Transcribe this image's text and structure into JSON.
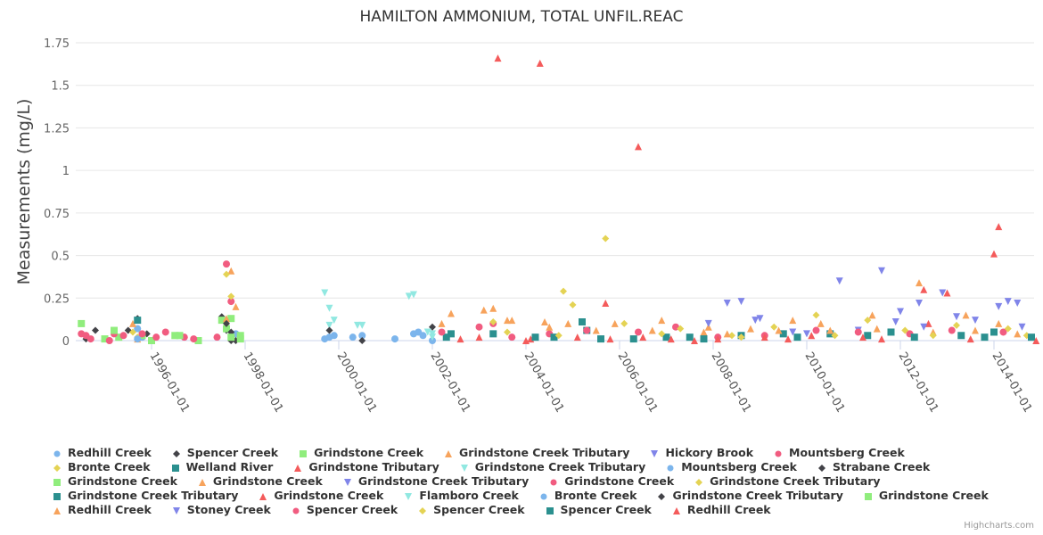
{
  "chart_data": {
    "type": "scatter",
    "title": "HAMILTON AMMONIUM, TOTAL UNFIL.REAC",
    "ylabel": "Measurements (mg/L)",
    "xlabel": "",
    "ylim": [
      0,
      1.75
    ],
    "xlim": [
      1994.4,
      2015.0
    ],
    "yticks": [
      {
        "value": 0,
        "label": "0"
      },
      {
        "value": 0.25,
        "label": "0.25"
      },
      {
        "value": 0.5,
        "label": "0.5"
      },
      {
        "value": 0.75,
        "label": "0.75"
      },
      {
        "value": 1,
        "label": "1"
      },
      {
        "value": 1.25,
        "label": "1.25"
      },
      {
        "value": 1.5,
        "label": "1.5"
      },
      {
        "value": 1.75,
        "label": "1.75"
      }
    ],
    "xticks": [
      {
        "value": 1996,
        "label": "1996-01-01"
      },
      {
        "value": 1998,
        "label": "1998-01-01"
      },
      {
        "value": 2000,
        "label": "2000-01-01"
      },
      {
        "value": 2002,
        "label": "2002-01-01"
      },
      {
        "value": 2004,
        "label": "2004-01-01"
      },
      {
        "value": 2006,
        "label": "2006-01-01"
      },
      {
        "value": 2008,
        "label": "2008-01-01"
      },
      {
        "value": 2010,
        "label": "2010-01-01"
      },
      {
        "value": 2012,
        "label": "2012-01-01"
      },
      {
        "value": 2014,
        "label": "2014-01-01"
      }
    ],
    "grid": true,
    "legend_position": "bottom",
    "series": [
      {
        "name": "Redhill Creek",
        "color": "#7cb5ec",
        "symbol": "circle",
        "points": [
          [
            1995.7,
            0.07
          ],
          [
            1995.8,
            0.02
          ],
          [
            1997.8,
            0.04
          ]
        ]
      },
      {
        "name": "Spencer Creek",
        "color": "#434348",
        "symbol": "diamond",
        "points": [
          [
            1994.6,
            0.01
          ],
          [
            1994.8,
            0.06
          ],
          [
            1995.5,
            0.06
          ],
          [
            1995.7,
            0.13
          ],
          [
            1995.9,
            0.04
          ],
          [
            1997.5,
            0.14
          ],
          [
            1997.6,
            0.06
          ],
          [
            1997.7,
            0.0
          ],
          [
            1997.8,
            0.0
          ]
        ]
      },
      {
        "name": "Grindstone Creek",
        "color": "#90ed7d",
        "symbol": "square",
        "points": [
          [
            1994.5,
            0.1
          ],
          [
            1995.0,
            0.01
          ],
          [
            1995.3,
            0.02
          ],
          [
            1995.8,
            0.03
          ],
          [
            1996.0,
            0.0
          ],
          [
            1996.5,
            0.03
          ],
          [
            1997.0,
            0.0
          ],
          [
            1997.5,
            0.12
          ],
          [
            1997.6,
            0.07
          ],
          [
            1997.7,
            0.13
          ],
          [
            1997.9,
            0.01
          ]
        ]
      },
      {
        "name": "Grindstone Creek Tributary",
        "color": "#f7a35c",
        "symbol": "triangle",
        "points": [
          [
            1995.6,
            0.1
          ],
          [
            1995.7,
            0.01
          ],
          [
            1997.6,
            0.13
          ],
          [
            1997.7,
            0.41
          ],
          [
            1997.8,
            0.2
          ]
        ]
      },
      {
        "name": "Hickory Brook",
        "color": "#8085e9",
        "symbol": "triangle-down",
        "points": [
          [
            2008.3,
            0.22
          ],
          [
            2008.6,
            0.23
          ],
          [
            2009.0,
            0.13
          ]
        ]
      },
      {
        "name": "Mountsberg Creek",
        "color": "#f15c80",
        "symbol": "circle",
        "points": [
          [
            1994.5,
            0.04
          ],
          [
            1994.7,
            0.01
          ],
          [
            1995.2,
            0.04
          ],
          [
            1995.4,
            0.03
          ],
          [
            1996.3,
            0.05
          ],
          [
            1996.7,
            0.02
          ],
          [
            1997.6,
            0.45
          ],
          [
            1997.7,
            0.23
          ]
        ]
      },
      {
        "name": "Bronte Creek",
        "color": "#e4d354",
        "symbol": "diamond",
        "points": [
          [
            1995.6,
            0.05
          ],
          [
            1995.7,
            0.02
          ],
          [
            1997.6,
            0.39
          ],
          [
            1997.7,
            0.26
          ],
          [
            2005.7,
            0.6
          ]
        ]
      },
      {
        "name": "Welland River",
        "color": "#2b908f",
        "symbol": "square",
        "points": [
          [
            1995.7,
            0.12
          ],
          [
            2002.3,
            0.02
          ],
          [
            2003.3,
            0.04
          ],
          [
            2005.2,
            0.11
          ],
          [
            2005.3,
            0.06
          ],
          [
            2007.0,
            0.02
          ]
        ]
      },
      {
        "name": "Grindstone Tributary",
        "color": "#f45b5b",
        "symbol": "triangle",
        "points": [
          [
            2003.4,
            1.66
          ],
          [
            2004.3,
            1.63
          ],
          [
            2006.4,
            1.14
          ],
          [
            2005.7,
            0.22
          ]
        ]
      },
      {
        "name": "Grindstone Creek Tributary",
        "color": "#91e8e1",
        "symbol": "triangle-down",
        "points": [
          [
            1999.7,
            0.28
          ],
          [
            1999.8,
            0.19
          ],
          [
            1999.9,
            0.12
          ],
          [
            1999.8,
            0.09
          ],
          [
            2000.4,
            0.09
          ],
          [
            2000.5,
            0.09
          ],
          [
            2001.5,
            0.26
          ],
          [
            2001.6,
            0.27
          ],
          [
            2002.0,
            0.04
          ]
        ]
      },
      {
        "name": "Mountsberg Creek",
        "color": "#7cb5ec",
        "symbol": "circle",
        "points": [
          [
            1999.7,
            0.01
          ],
          [
            1999.8,
            0.02
          ],
          [
            1999.9,
            0.03
          ],
          [
            2000.3,
            0.02
          ],
          [
            2000.5,
            0.03
          ],
          [
            2001.2,
            0.01
          ],
          [
            2001.6,
            0.04
          ],
          [
            2001.7,
            0.05
          ],
          [
            2002.0,
            0.0
          ]
        ]
      },
      {
        "name": "Strabane Creek",
        "color": "#434348",
        "symbol": "diamond",
        "points": [
          [
            1999.8,
            0.06
          ],
          [
            2000.5,
            0.0
          ],
          [
            2002.0,
            0.08
          ]
        ]
      },
      {
        "name": "Grindstone Creek",
        "color": "#90ed7d",
        "symbol": "square",
        "points": [
          [
            1996.6,
            0.03
          ],
          [
            1997.9,
            0.03
          ]
        ]
      },
      {
        "name": "Grindstone Creek",
        "color": "#f7a35c",
        "symbol": "triangle",
        "points": [
          [
            2002.4,
            0.16
          ],
          [
            2003.1,
            0.18
          ],
          [
            2003.3,
            0.19
          ],
          [
            2003.6,
            0.12
          ],
          [
            2004.4,
            0.11
          ],
          [
            2004.9,
            0.1
          ],
          [
            2005.9,
            0.1
          ],
          [
            2006.9,
            0.12
          ],
          [
            2007.9,
            0.08
          ],
          [
            2008.8,
            0.07
          ],
          [
            2009.7,
            0.12
          ],
          [
            2010.3,
            0.1
          ],
          [
            2011.4,
            0.15
          ],
          [
            2012.4,
            0.34
          ],
          [
            2013.4,
            0.15
          ],
          [
            2014.1,
            0.1
          ]
        ]
      },
      {
        "name": "Grindstone Creek Tributary",
        "color": "#8085e9",
        "symbol": "triangle-down",
        "points": [
          [
            2009.7,
            0.05
          ],
          [
            2010.7,
            0.35
          ],
          [
            2011.1,
            0.06
          ],
          [
            2011.6,
            0.41
          ],
          [
            2012.0,
            0.17
          ],
          [
            2012.4,
            0.22
          ],
          [
            2012.9,
            0.28
          ],
          [
            2013.2,
            0.14
          ],
          [
            2014.1,
            0.2
          ],
          [
            2014.3,
            0.23
          ],
          [
            2014.5,
            0.22
          ]
        ]
      },
      {
        "name": "Grindstone Creek",
        "color": "#f15c80",
        "symbol": "circle",
        "points": [
          [
            2002.2,
            0.05
          ],
          [
            2003.0,
            0.08
          ],
          [
            2003.3,
            0.1
          ],
          [
            2003.7,
            0.02
          ],
          [
            2004.5,
            0.04
          ],
          [
            2005.3,
            0.06
          ],
          [
            2006.4,
            0.05
          ],
          [
            2007.2,
            0.08
          ],
          [
            2008.1,
            0.02
          ],
          [
            2009.1,
            0.03
          ],
          [
            2010.2,
            0.06
          ],
          [
            2011.1,
            0.05
          ],
          [
            2012.2,
            0.04
          ],
          [
            2013.1,
            0.06
          ],
          [
            2014.2,
            0.05
          ]
        ]
      },
      {
        "name": "Grindstone Creek Tributary",
        "color": "#e4d354",
        "symbol": "diamond",
        "points": [
          [
            2003.3,
            0.11
          ],
          [
            2004.8,
            0.29
          ],
          [
            2005.0,
            0.21
          ],
          [
            2006.1,
            0.1
          ],
          [
            2007.3,
            0.07
          ],
          [
            2008.4,
            0.03
          ],
          [
            2009.3,
            0.08
          ],
          [
            2010.2,
            0.15
          ],
          [
            2011.3,
            0.12
          ],
          [
            2012.1,
            0.06
          ],
          [
            2013.2,
            0.09
          ],
          [
            2014.3,
            0.07
          ]
        ]
      },
      {
        "name": "Grindstone Creek Tributary",
        "color": "#2b908f",
        "symbol": "square",
        "points": [
          [
            2004.6,
            0.02
          ],
          [
            2006.3,
            0.01
          ],
          [
            2007.5,
            0.02
          ],
          [
            2008.6,
            0.03
          ],
          [
            2009.5,
            0.04
          ],
          [
            2010.5,
            0.04
          ],
          [
            2011.3,
            0.03
          ],
          [
            2012.3,
            0.02
          ],
          [
            2013.3,
            0.03
          ],
          [
            2014.0,
            0.05
          ]
        ]
      },
      {
        "name": "Grindstone Creek",
        "color": "#f45b5b",
        "symbol": "triangle",
        "points": [
          [
            2003.0,
            0.02
          ],
          [
            2004.1,
            0.01
          ],
          [
            2005.1,
            0.02
          ],
          [
            2006.5,
            0.02
          ],
          [
            2007.1,
            0.01
          ],
          [
            2008.1,
            0.01
          ],
          [
            2009.1,
            0.02
          ],
          [
            2010.1,
            0.03
          ],
          [
            2011.2,
            0.02
          ],
          [
            2012.5,
            0.3
          ],
          [
            2012.6,
            0.1
          ],
          [
            2013.0,
            0.28
          ],
          [
            2014.1,
            0.67
          ],
          [
            2014.0,
            0.51
          ]
        ]
      },
      {
        "name": "Flamboro Creek",
        "color": "#91e8e1",
        "symbol": "triangle-down",
        "points": [
          [
            2001.9,
            0.05
          ],
          [
            2002.0,
            0.02
          ]
        ]
      },
      {
        "name": "Bronte Creek",
        "color": "#7cb5ec",
        "symbol": "circle",
        "points": [
          [
            1995.7,
            0.01
          ],
          [
            2001.8,
            0.03
          ]
        ]
      },
      {
        "name": "Grindstone Creek Tributary",
        "color": "#434348",
        "symbol": "diamond",
        "points": [
          [
            1997.6,
            0.1
          ],
          [
            1997.7,
            0.05
          ]
        ]
      },
      {
        "name": "Grindstone Creek",
        "color": "#90ed7d",
        "symbol": "square",
        "points": [
          [
            1995.2,
            0.06
          ],
          [
            1997.7,
            0.02
          ]
        ]
      },
      {
        "name": "Redhill Creek",
        "color": "#f7a35c",
        "symbol": "triangle",
        "points": [
          [
            2002.2,
            0.1
          ],
          [
            2003.7,
            0.12
          ],
          [
            2004.5,
            0.08
          ],
          [
            2005.5,
            0.06
          ],
          [
            2006.7,
            0.06
          ],
          [
            2007.8,
            0.05
          ],
          [
            2008.3,
            0.04
          ],
          [
            2009.4,
            0.06
          ],
          [
            2010.5,
            0.06
          ],
          [
            2011.5,
            0.07
          ],
          [
            2012.7,
            0.05
          ],
          [
            2013.6,
            0.06
          ],
          [
            2014.5,
            0.04
          ]
        ]
      },
      {
        "name": "Stoney Creek",
        "color": "#8085e9",
        "symbol": "triangle-down",
        "points": [
          [
            2007.9,
            0.1
          ],
          [
            2008.9,
            0.12
          ],
          [
            2010.0,
            0.04
          ],
          [
            2011.9,
            0.11
          ],
          [
            2012.5,
            0.08
          ],
          [
            2013.6,
            0.12
          ],
          [
            2014.6,
            0.08
          ]
        ]
      },
      {
        "name": "Spencer Creek",
        "color": "#f15c80",
        "symbol": "circle",
        "points": [
          [
            1994.6,
            0.03
          ],
          [
            1995.1,
            0.0
          ],
          [
            1995.8,
            0.04
          ],
          [
            1996.1,
            0.02
          ],
          [
            1996.9,
            0.01
          ],
          [
            1997.4,
            0.02
          ]
        ]
      },
      {
        "name": "Spencer Creek",
        "color": "#e4d354",
        "symbol": "diamond",
        "points": [
          [
            2003.6,
            0.05
          ],
          [
            2004.7,
            0.03
          ],
          [
            2006.9,
            0.04
          ],
          [
            2008.6,
            0.02
          ],
          [
            2010.6,
            0.03
          ],
          [
            2012.7,
            0.03
          ],
          [
            2014.7,
            0.03
          ]
        ]
      },
      {
        "name": "Spencer Creek",
        "color": "#2b908f",
        "symbol": "square",
        "points": [
          [
            2002.4,
            0.04
          ],
          [
            2004.2,
            0.02
          ],
          [
            2005.6,
            0.01
          ],
          [
            2007.8,
            0.01
          ],
          [
            2009.8,
            0.02
          ],
          [
            2011.8,
            0.05
          ],
          [
            2013.8,
            0.02
          ],
          [
            2014.8,
            0.02
          ]
        ]
      },
      {
        "name": "Redhill Creek",
        "color": "#f45b5b",
        "symbol": "triangle",
        "points": [
          [
            2002.6,
            0.01
          ],
          [
            2004.0,
            0.0
          ],
          [
            2005.8,
            0.01
          ],
          [
            2007.6,
            0.0
          ],
          [
            2009.6,
            0.01
          ],
          [
            2011.6,
            0.01
          ],
          [
            2013.5,
            0.01
          ],
          [
            2014.9,
            0.0
          ]
        ]
      }
    ]
  },
  "credits": "Highcharts.com"
}
